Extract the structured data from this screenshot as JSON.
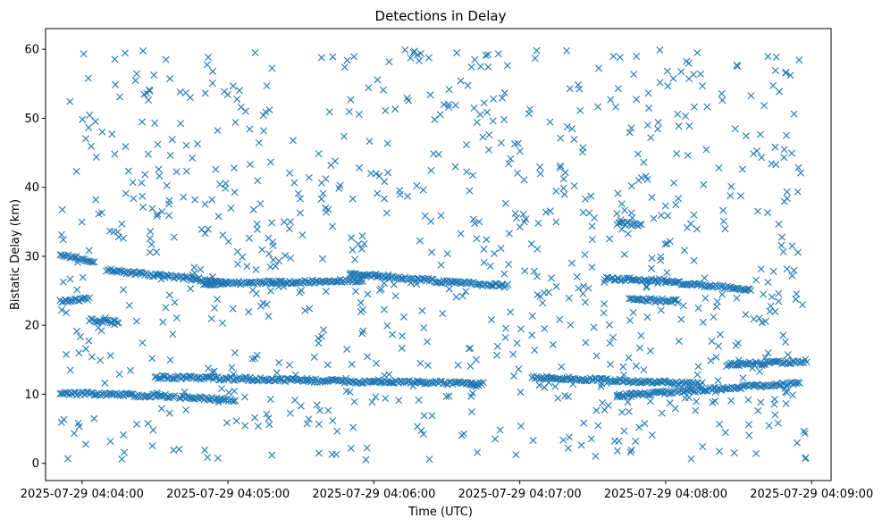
{
  "chart_data": {
    "type": "scatter",
    "title": "Detections in Delay",
    "xlabel": "Time (UTC)",
    "ylabel": "Bistatic Delay (km)",
    "marker": "x",
    "color": "#1f77b4",
    "xlim": [
      "2025-07-29 04:03:45",
      "2025-07-29 04:09:08"
    ],
    "ylim": [
      -2.5,
      63
    ],
    "x_ticks": [
      "2025-07-29 04:04:00",
      "2025-07-29 04:05:00",
      "2025-07-29 04:06:00",
      "2025-07-29 04:07:00",
      "2025-07-29 04:08:00",
      "2025-07-29 04:09:00"
    ],
    "y_ticks": [
      0,
      10,
      20,
      30,
      40,
      50,
      60
    ],
    "grid": false,
    "legend": "none",
    "data_range": {
      "x_start": "2025-07-29 04:03:51",
      "x_end": "2025-07-29 04:08:58"
    },
    "tracks": [
      {
        "t_start": "2025-07-29 04:03:51",
        "t_end": "2025-07-29 04:04:38",
        "delay_start": 10.2,
        "delay_end": 9.7
      },
      {
        "t_start": "2025-07-29 04:04:40",
        "t_end": "2025-07-29 04:05:03",
        "delay_start": 9.6,
        "delay_end": 9.1
      },
      {
        "t_start": "2025-07-29 04:04:30",
        "t_end": "2025-07-29 04:06:00",
        "delay_start": 12.5,
        "delay_end": 11.8
      },
      {
        "t_start": "2025-07-29 04:06:00",
        "t_end": "2025-07-29 04:06:45",
        "delay_start": 11.9,
        "delay_end": 11.5
      },
      {
        "t_start": "2025-07-29 04:07:05",
        "t_end": "2025-07-29 04:08:15",
        "delay_start": 12.5,
        "delay_end": 11.5
      },
      {
        "t_start": "2025-07-29 04:07:40",
        "t_end": "2025-07-29 04:08:55",
        "delay_start": 9.8,
        "delay_end": 11.6
      },
      {
        "t_start": "2025-07-29 04:08:25",
        "t_end": "2025-07-29 04:08:58",
        "delay_start": 14.3,
        "delay_end": 14.8
      },
      {
        "t_start": "2025-07-29 04:03:51",
        "t_end": "2025-07-29 04:04:05",
        "delay_start": 30.2,
        "delay_end": 29.3
      },
      {
        "t_start": "2025-07-29 04:04:10",
        "t_end": "2025-07-29 04:05:00",
        "delay_start": 28.0,
        "delay_end": 26.2
      },
      {
        "t_start": "2025-07-29 04:04:50",
        "t_end": "2025-07-29 04:05:55",
        "delay_start": 26.0,
        "delay_end": 26.5
      },
      {
        "t_start": "2025-07-29 04:05:50",
        "t_end": "2025-07-29 04:06:30",
        "delay_start": 27.5,
        "delay_end": 26.3
      },
      {
        "t_start": "2025-07-29 04:06:30",
        "t_end": "2025-07-29 04:06:55",
        "delay_start": 26.3,
        "delay_end": 25.7
      },
      {
        "t_start": "2025-07-29 04:07:35",
        "t_end": "2025-07-29 04:08:00",
        "delay_start": 26.8,
        "delay_end": 26.5
      },
      {
        "t_start": "2025-07-29 04:08:00",
        "t_end": "2025-07-29 04:08:35",
        "delay_start": 26.3,
        "delay_end": 25.2
      },
      {
        "t_start": "2025-07-29 04:03:51",
        "t_end": "2025-07-29 04:04:03",
        "delay_start": 23.5,
        "delay_end": 23.8
      },
      {
        "t_start": "2025-07-29 04:04:03",
        "t_end": "2025-07-29 04:04:15",
        "delay_start": 20.8,
        "delay_end": 20.5
      },
      {
        "t_start": "2025-07-29 04:07:40",
        "t_end": "2025-07-29 04:07:50",
        "delay_start": 34.8,
        "delay_end": 34.5
      },
      {
        "t_start": "2025-07-29 04:07:45",
        "t_end": "2025-07-29 04:08:05",
        "delay_start": 23.8,
        "delay_end": 23.5
      }
    ],
    "scattered_points": {
      "count": 900,
      "delay_range": [
        0.5,
        60
      ],
      "distribution": "uniform"
    }
  }
}
